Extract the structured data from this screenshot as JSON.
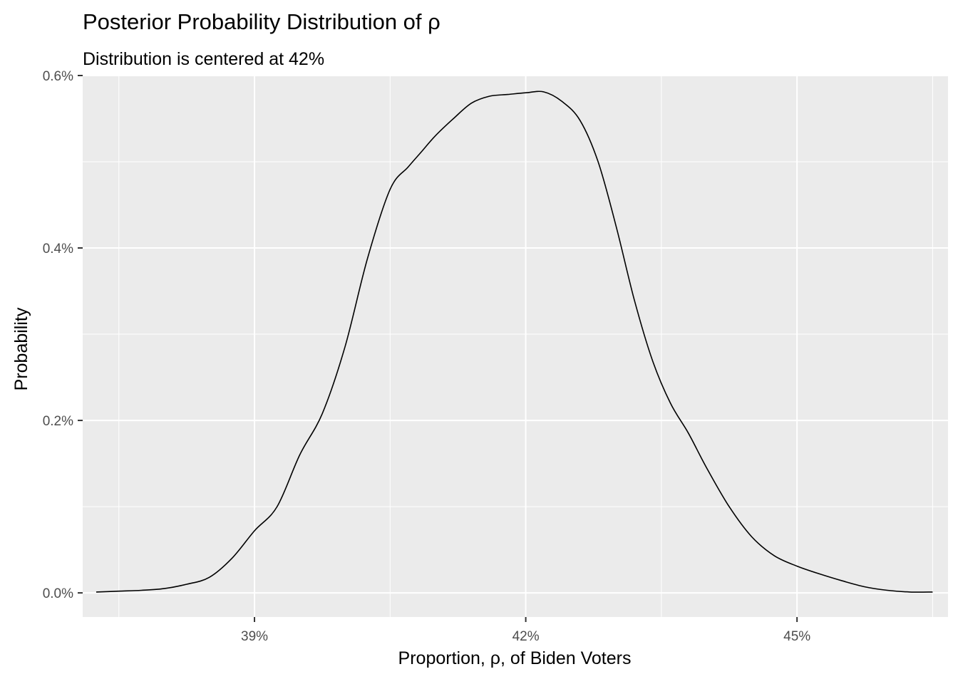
{
  "chart_data": {
    "type": "line",
    "title": "Posterior Probability Distribution of ρ",
    "subtitle": "Distribution is centered at 42%",
    "xlabel": "Proportion, ρ, of Biden Voters",
    "ylabel": "Probability",
    "xlim": [
      0.371,
      0.4667
    ],
    "ylim": [
      -0.00028,
      0.006
    ],
    "x_ticks": [
      0.39,
      0.42,
      0.45
    ],
    "x_tick_labels": [
      "39%",
      "42%",
      "45%"
    ],
    "x_minor_ticks": [
      0.375,
      0.405,
      0.435,
      0.465
    ],
    "y_ticks": [
      0.0,
      0.002,
      0.004,
      0.006
    ],
    "y_tick_labels": [
      "0.0%",
      "0.2%",
      "0.4%",
      "0.6%"
    ],
    "y_minor_ticks": [
      0.001,
      0.003,
      0.005
    ],
    "grid": true,
    "colors": {
      "panel": "#EBEBEB",
      "grid": "#FFFFFF",
      "line": "#000000"
    },
    "series": [
      {
        "x": [
          0.3725,
          0.375,
          0.3775,
          0.38,
          0.3825,
          0.385,
          0.3875,
          0.39,
          0.3925,
          0.395,
          0.3975,
          0.4,
          0.4025,
          0.405,
          0.407,
          0.4085,
          0.41,
          0.412,
          0.414,
          0.416,
          0.418,
          0.42,
          0.422,
          0.424,
          0.426,
          0.428,
          0.43,
          0.432,
          0.434,
          0.436,
          0.438,
          0.44,
          0.4425,
          0.445,
          0.4475,
          0.45,
          0.4525,
          0.455,
          0.4575,
          0.46,
          0.4625,
          0.465
        ],
        "y": [
          1e-05,
          2e-05,
          3e-05,
          5e-05,
          0.0001,
          0.00018,
          0.0004,
          0.00072,
          0.001,
          0.0016,
          0.00208,
          0.00285,
          0.00388,
          0.00468,
          0.00494,
          0.00512,
          0.0053,
          0.0055,
          0.00568,
          0.00576,
          0.00578,
          0.0058,
          0.00581,
          0.0057,
          0.00548,
          0.005,
          0.00425,
          0.0034,
          0.0027,
          0.0022,
          0.00185,
          0.00145,
          0.001,
          0.00065,
          0.00043,
          0.00031,
          0.00022,
          0.00014,
          7e-05,
          3e-05,
          1e-05,
          1e-05
        ]
      }
    ]
  }
}
